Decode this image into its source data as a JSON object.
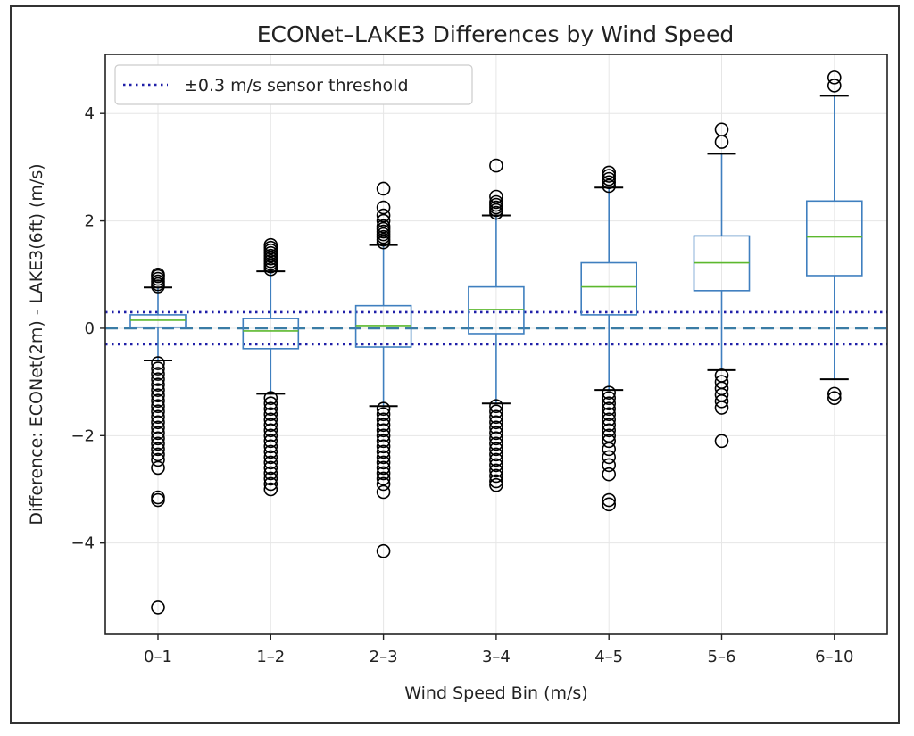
{
  "chart_data": {
    "type": "box",
    "title": "ECONet–LAKE3 Differences by Wind Speed",
    "xlabel": "Wind Speed Bin (m/s)",
    "ylabel": "Difference: ECONet(2m) - LAKE3(6ft) (m/s)",
    "ylim": [
      -5.7,
      5.1
    ],
    "yticks": [
      -4,
      -2,
      0,
      2,
      4
    ],
    "grid": true,
    "legend": {
      "placement": "top-left",
      "entries": [
        "±0.3 m/s sensor threshold"
      ]
    },
    "reference_lines": [
      {
        "y": 0,
        "style": "dashed",
        "color": "#3a7ca5"
      },
      {
        "y": 0.3,
        "style": "dotted",
        "color": "#1f1fa8",
        "label": "±0.3 m/s sensor threshold"
      },
      {
        "y": -0.3,
        "style": "dotted",
        "color": "#1f1fa8"
      }
    ],
    "colors": {
      "box": "#3f7fbf",
      "median": "#5cb82e",
      "outlier": "#000000"
    },
    "categories": [
      "0–1",
      "1–2",
      "2–3",
      "3–4",
      "4–5",
      "5–6",
      "6–10"
    ],
    "boxes": [
      {
        "q1": 0.02,
        "median": 0.15,
        "q3": 0.25,
        "whisker_low": -0.6,
        "whisker_high": 0.76,
        "outliers": [
          0.78,
          0.82,
          0.87,
          0.92,
          0.97,
          1.0,
          -0.65,
          -0.75,
          -0.85,
          -0.95,
          -1.05,
          -1.15,
          -1.25,
          -1.35,
          -1.45,
          -1.55,
          -1.65,
          -1.75,
          -1.85,
          -1.95,
          -2.05,
          -2.15,
          -2.25,
          -2.35,
          -2.45,
          -2.6,
          -3.15,
          -3.2,
          -5.2
        ]
      },
      {
        "q1": -0.38,
        "median": -0.05,
        "q3": 0.18,
        "whisker_low": -1.22,
        "whisker_high": 1.06,
        "outliers": [
          1.1,
          1.15,
          1.2,
          1.25,
          1.3,
          1.35,
          1.4,
          1.45,
          1.5,
          1.55,
          -1.3,
          -1.4,
          -1.5,
          -1.6,
          -1.7,
          -1.8,
          -1.9,
          -2.0,
          -2.1,
          -2.2,
          -2.3,
          -2.4,
          -2.5,
          -2.6,
          -2.7,
          -2.8,
          -2.9,
          -3.0
        ]
      },
      {
        "q1": -0.35,
        "median": 0.05,
        "q3": 0.42,
        "whisker_low": -1.45,
        "whisker_high": 1.55,
        "outliers": [
          1.6,
          1.65,
          1.7,
          1.75,
          1.8,
          1.85,
          1.9,
          2.0,
          2.1,
          2.25,
          2.6,
          -1.5,
          -1.6,
          -1.7,
          -1.8,
          -1.9,
          -2.0,
          -2.1,
          -2.2,
          -2.3,
          -2.4,
          -2.5,
          -2.6,
          -2.7,
          -2.8,
          -2.9,
          -3.05,
          -4.15
        ]
      },
      {
        "q1": -0.1,
        "median": 0.35,
        "q3": 0.77,
        "whisker_low": -1.4,
        "whisker_high": 2.1,
        "outliers": [
          2.15,
          2.2,
          2.25,
          2.3,
          2.35,
          2.45,
          3.03,
          -1.45,
          -1.55,
          -1.65,
          -1.75,
          -1.85,
          -1.95,
          -2.05,
          -2.15,
          -2.25,
          -2.35,
          -2.45,
          -2.55,
          -2.65,
          -2.75,
          -2.85,
          -2.92
        ]
      },
      {
        "q1": 0.25,
        "median": 0.77,
        "q3": 1.22,
        "whisker_low": -1.15,
        "whisker_high": 2.62,
        "outliers": [
          2.65,
          2.72,
          2.78,
          2.84,
          2.9,
          -1.2,
          -1.3,
          -1.4,
          -1.5,
          -1.6,
          -1.7,
          -1.8,
          -1.9,
          -2.0,
          -2.1,
          -2.25,
          -2.4,
          -2.55,
          -2.72,
          -3.2,
          -3.28
        ]
      },
      {
        "q1": 0.7,
        "median": 1.22,
        "q3": 1.72,
        "whisker_low": -0.78,
        "whisker_high": 3.25,
        "outliers": [
          3.47,
          3.7,
          -0.88,
          -1.0,
          -1.12,
          -1.24,
          -1.36,
          -1.48,
          -2.1
        ]
      },
      {
        "q1": 0.98,
        "median": 1.7,
        "q3": 2.37,
        "whisker_low": -0.95,
        "whisker_high": 4.33,
        "outliers": [
          4.52,
          4.67,
          -1.22,
          -1.3
        ]
      }
    ]
  }
}
